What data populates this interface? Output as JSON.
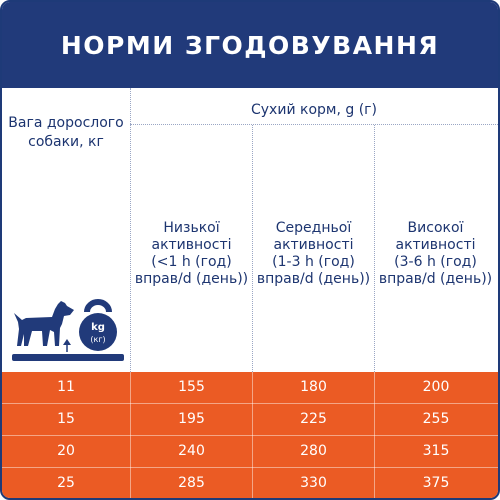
{
  "title": "НОРМИ ЗГОДОВУВАННЯ",
  "weight_header": [
    "Вага дорослого",
    "собаки, кг"
  ],
  "dry_food_header": "Сухий корм, g (г)",
  "columns": [
    {
      "lines": [
        "Низької",
        "активності",
        "(<1 h (год)",
        "вправ/d (день))"
      ]
    },
    {
      "lines": [
        "Середньої",
        "активності",
        "(1-3 h (год)",
        "вправ/d (день))"
      ]
    },
    {
      "lines": [
        "Високої",
        "активності",
        "(3-6 h (год)",
        "вправ/d (день))"
      ]
    }
  ],
  "kettlebell": {
    "top": "kg",
    "bottom": "(кг)"
  },
  "rows": [
    {
      "weight": "11",
      "low": "155",
      "medium": "180",
      "high": "200"
    },
    {
      "weight": "15",
      "low": "195",
      "medium": "225",
      "high": "255"
    },
    {
      "weight": "20",
      "low": "240",
      "medium": "280",
      "high": "315"
    },
    {
      "weight": "25",
      "low": "285",
      "medium": "330",
      "high": "375"
    }
  ],
  "colors": {
    "navy": "#213a7a",
    "orange": "#eb5b24",
    "text": "#1d3570"
  }
}
